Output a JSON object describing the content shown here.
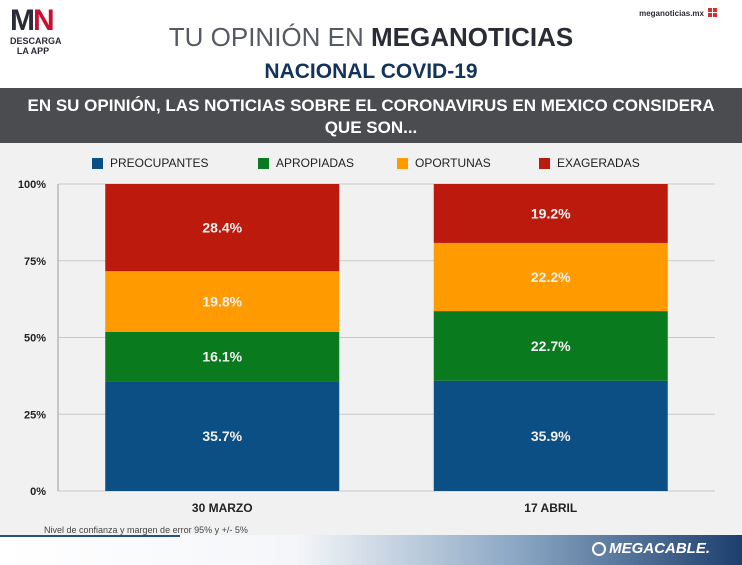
{
  "header": {
    "logo_text": "MN",
    "logo_sub_1": "DESCARGA",
    "logo_sub_2": "LA APP",
    "site": "meganoticias.mx",
    "title_light": "TU OPINIÓN EN ",
    "title_bold": "MEGANOTICIAS",
    "subtitle": "NACIONAL COVID-19"
  },
  "question": "EN SU OPINIÓN, LAS NOTICIAS SOBRE EL CORONAVIRUS EN MEXICO CONSIDERA QUE SON...",
  "note": "Nivel de confianza y margen de error 95% y +/- 5%",
  "brand": "MEGACABLE.",
  "colors": {
    "preocupantes": "#0b4f85",
    "apropiadas": "#0a7a1f",
    "oportunas": "#ff9a00",
    "exageradas": "#bb1a0d"
  },
  "chart_data": {
    "type": "bar",
    "stacked": true,
    "categories": [
      "30 MARZO",
      "17 ABRIL"
    ],
    "series": [
      {
        "name": "PREOCUPANTES",
        "values": [
          35.7,
          35.9
        ],
        "color": "#0b4f85"
      },
      {
        "name": "APROPIADAS",
        "values": [
          16.1,
          22.7
        ],
        "color": "#0a7a1f"
      },
      {
        "name": "OPORTUNAS",
        "values": [
          19.8,
          22.2
        ],
        "color": "#ff9a00"
      },
      {
        "name": "EXAGERADAS",
        "values": [
          28.4,
          19.2
        ],
        "color": "#bb1a0d"
      }
    ],
    "y_ticks": [
      "0%",
      "25%",
      "50%",
      "75%",
      "100%"
    ],
    "ylim": [
      0,
      100
    ],
    "grid": true,
    "legend_position": "top"
  }
}
